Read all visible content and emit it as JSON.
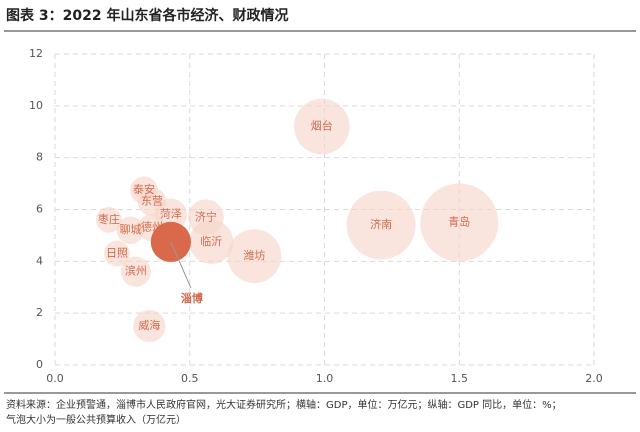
{
  "chart_data": {
    "type": "bubble",
    "title": "图表 3：2022 年山东省各市经济、财政情况",
    "notes": [
      "资料来源：企业预警通，淄博市人民政府官网，光大证券研究所；横轴：GDP，单位：万亿元；纵轴：GDP 同比，单位：%；",
      "气泡大小为一般公共预算收入（万亿元）"
    ],
    "labels": [
      "烟台",
      "青岛",
      "济南",
      "潍坊",
      "临沂",
      "济宁",
      "菏泽",
      "东营",
      "泰安",
      "枣庄",
      "聊城",
      "德州",
      "日照",
      "滨州",
      "威海",
      "淄博"
    ],
    "x": [
      0.99,
      1.5,
      1.21,
      0.74,
      0.58,
      0.56,
      0.43,
      0.36,
      0.33,
      0.2,
      0.28,
      0.36,
      0.23,
      0.3,
      0.35,
      0.43
    ],
    "values": [
      9.2,
      5.5,
      5.4,
      4.2,
      4.75,
      5.7,
      5.8,
      6.3,
      6.75,
      5.6,
      5.2,
      5.3,
      4.3,
      3.6,
      1.5,
      4.75
    ],
    "sizes": [
      0.065,
      0.128,
      0.1,
      0.061,
      0.041,
      0.027,
      0.022,
      0.017,
      0.016,
      0.014,
      0.016,
      0.016,
      0.014,
      0.019,
      0.022,
      0.034
    ],
    "color": "#f5d3c7",
    "colors": [
      "#f5d3c7",
      "#f5d3c7",
      "#f5d3c7",
      "#f5d3c7",
      "#f5d3c7",
      "#f5d3c7",
      "#f5d3c7",
      "#f5d3c7",
      "#f5d3c7",
      "#f5d3c7",
      "#f5d3c7",
      "#f5d3c7",
      "#f5d3c7",
      "#f5d3c7",
      "#f5d3c7",
      "#d9694a"
    ],
    "xlim": [
      0,
      2
    ],
    "xticks": [
      {
        "value": 0,
        "label": "0.0"
      },
      {
        "value": 0.5,
        "label": "0.5"
      },
      {
        "value": 1,
        "label": "1.0"
      },
      {
        "value": 1.5,
        "label": "1.5"
      },
      {
        "value": 2,
        "label": "2.0"
      }
    ],
    "ylim": [
      0,
      12
    ],
    "yticks": [
      0,
      2,
      4,
      6,
      8,
      10,
      12
    ],
    "grid": true
  }
}
